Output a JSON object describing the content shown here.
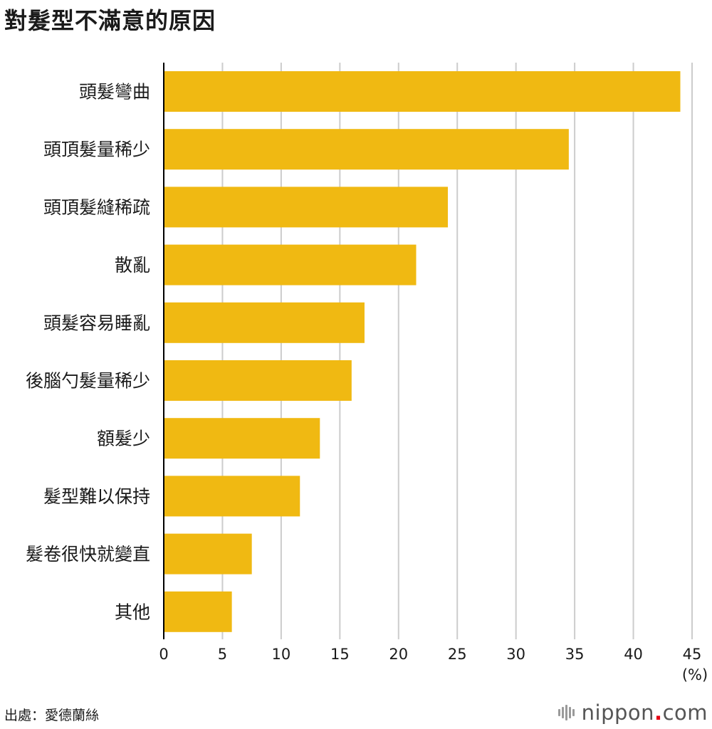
{
  "title": "對髮型不滿意的原因",
  "source": "出處：愛德蘭絲",
  "logo": {
    "prefix": "nippon",
    "dot": ".",
    "suffix": "com"
  },
  "colors": {
    "bar": "#F0B912",
    "grid": "#cccccc",
    "axis": "#000000",
    "text": "#1a1a1a"
  },
  "chart_data": {
    "type": "bar",
    "orientation": "horizontal",
    "categories": [
      "頭髮彎曲",
      "頭頂髮量稀少",
      "頭頂髮縫稀疏",
      "散亂",
      "頭髮容易睡亂",
      "後腦勺髮量稀少",
      "額髮少",
      "髮型難以保持",
      "髮卷很快就變直",
      "其他"
    ],
    "values": [
      44.0,
      34.5,
      24.2,
      21.5,
      17.1,
      16.0,
      13.3,
      11.6,
      7.5,
      5.8
    ],
    "xlim": [
      0,
      45
    ],
    "xticks": [
      0,
      5,
      10,
      15,
      20,
      25,
      30,
      35,
      40,
      45
    ],
    "xunit": "(%)",
    "grid": "vertical",
    "legend": "none"
  }
}
